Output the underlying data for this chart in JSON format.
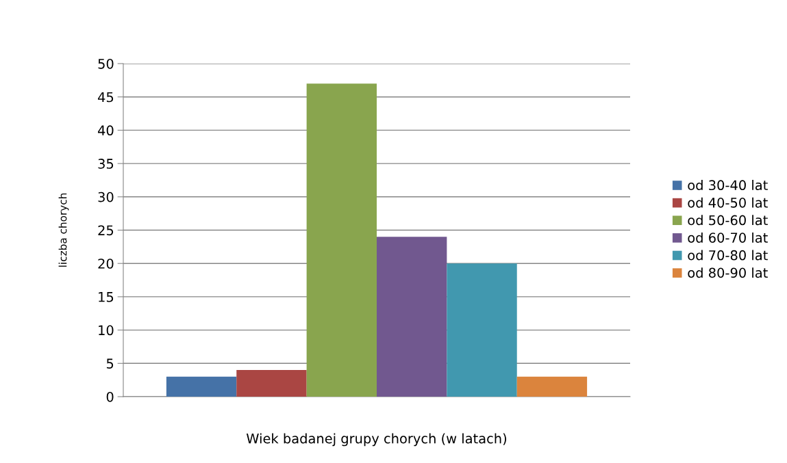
{
  "chart_data": {
    "type": "bar",
    "xlabel": "Wiek badanej grupy chorych (w latach)",
    "ylabel": "liczba chorych",
    "categories": [
      null
    ],
    "series": [
      {
        "name": "od 30-40 lat",
        "color": "#4572a7",
        "values": [
          3
        ]
      },
      {
        "name": "od 40-50 lat",
        "color": "#aa4643",
        "values": [
          4
        ]
      },
      {
        "name": "od 50-60 lat",
        "color": "#89a54e",
        "values": [
          47
        ]
      },
      {
        "name": "od 60-70 lat",
        "color": "#71588f",
        "values": [
          24
        ]
      },
      {
        "name": "od 70-80 lat",
        "color": "#4198af",
        "values": [
          20
        ]
      },
      {
        "name": "od 80-90 lat",
        "color": "#db843d",
        "values": [
          3
        ]
      }
    ],
    "ylim": [
      0,
      50
    ],
    "yticks": [
      0,
      5,
      10,
      15,
      20,
      25,
      30,
      35,
      40,
      45,
      50
    ],
    "grid": "y",
    "legend": "right"
  }
}
